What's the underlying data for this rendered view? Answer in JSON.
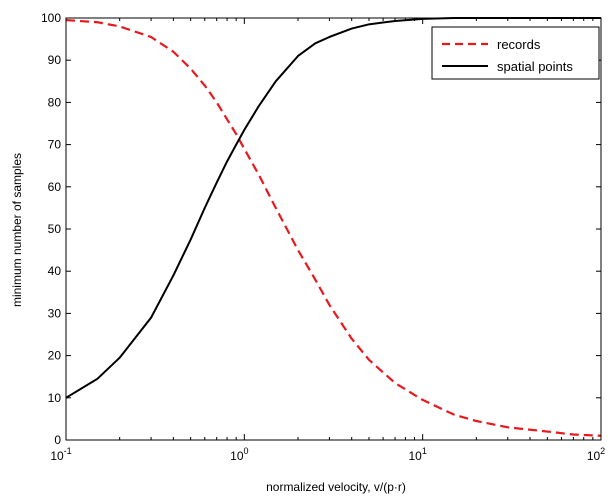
{
  "chart_data": {
    "type": "line",
    "xlabel": "normalized velocity, v/(p·r)",
    "ylabel": "minimum number of samples",
    "xscale": "log",
    "xlim": [
      0.1,
      100
    ],
    "ylim": [
      0,
      100
    ],
    "xticks": [
      {
        "value": 0.1,
        "base": "10",
        "exp": "-1"
      },
      {
        "value": 1,
        "base": "10",
        "exp": "0"
      },
      {
        "value": 10,
        "base": "10",
        "exp": "1"
      },
      {
        "value": 100,
        "base": "10",
        "exp": "2"
      }
    ],
    "yticks": [
      0,
      10,
      20,
      30,
      40,
      50,
      60,
      70,
      80,
      90,
      100
    ],
    "grid": false,
    "legend_position": "top-right",
    "series": [
      {
        "name": "records",
        "color": "#e8191e",
        "style": "dashed",
        "x": [
          0.1,
          0.15,
          0.2,
          0.3,
          0.4,
          0.5,
          0.6,
          0.7,
          0.8,
          0.9,
          1.0,
          1.2,
          1.5,
          2.0,
          2.5,
          3.0,
          4.0,
          5.0,
          7.0,
          10,
          15,
          20,
          30,
          50,
          70,
          100
        ],
        "y": [
          99.5,
          99,
          98,
          95.5,
          92,
          88,
          84,
          80,
          76,
          72.5,
          69,
          63,
          55,
          45,
          38,
          32,
          24,
          19,
          13.5,
          9.5,
          6,
          4.5,
          3,
          2,
          1.3,
          1
        ]
      },
      {
        "name": "spatial points",
        "color": "#000000",
        "style": "solid",
        "x": [
          0.1,
          0.15,
          0.2,
          0.3,
          0.4,
          0.5,
          0.6,
          0.7,
          0.8,
          0.9,
          1.0,
          1.2,
          1.5,
          2.0,
          2.5,
          3.0,
          4.0,
          5.0,
          7.0,
          10,
          15,
          20,
          30,
          50,
          70,
          100
        ],
        "y": [
          10,
          14.5,
          19.5,
          29,
          39,
          47.5,
          55,
          61,
          66,
          70,
          73.5,
          79,
          85,
          91,
          94,
          95.5,
          97.5,
          98.5,
          99.3,
          99.8,
          100,
          100,
          100,
          100,
          100,
          100
        ]
      }
    ]
  }
}
